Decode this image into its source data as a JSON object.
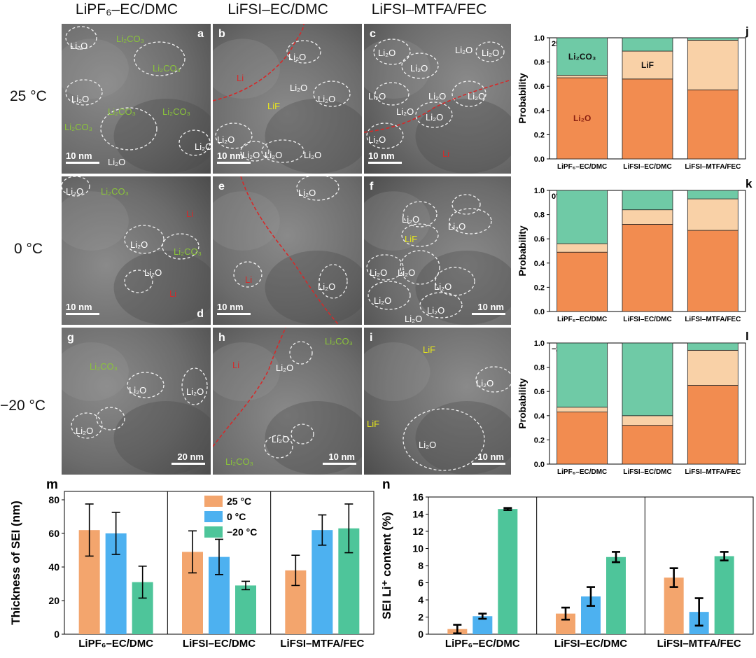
{
  "columns": [
    "LiPF₆–EC/DMC",
    "LiFSI–EC/DMC",
    "LiFSI–MTFA/FEC"
  ],
  "rows": [
    "25 °C",
    "0 °C",
    "−20 °C"
  ],
  "colors": {
    "li2o": "#f28c50",
    "lif": "#f9d1a7",
    "li2co3": "#6fcaa6",
    "c25": "#f3a56d",
    "c0": "#4db1f0",
    "cm20": "#4ec59a",
    "li": "#d42a2a",
    "lif_label": "#e8e81a",
    "li2co3_label": "#8ac43a",
    "tem_bg": "#6a6a6a"
  },
  "tem_panels": [
    {
      "letter": "a",
      "scale": "10 nm",
      "labels": [
        {
          "text": "Li₂O",
          "kind": "li2o"
        },
        {
          "text": "Li₂CO₃",
          "kind": "li2co3"
        },
        {
          "text": "Li₂CO₃",
          "kind": "li2co3"
        },
        {
          "text": "Li₂O",
          "kind": "li2o"
        },
        {
          "text": "Li₂CO₃",
          "kind": "li2co3"
        },
        {
          "text": "Li₂CO₃",
          "kind": "li2co3"
        },
        {
          "text": "Li₂CO₃",
          "kind": "li2co3"
        },
        {
          "text": "Li₂O",
          "kind": "li2o"
        },
        {
          "text": "Li₂O",
          "kind": "li2o"
        }
      ]
    },
    {
      "letter": "b",
      "scale": "10 nm",
      "labels": [
        {
          "text": "Li",
          "kind": "li"
        },
        {
          "text": "Li₂O",
          "kind": "li2o"
        },
        {
          "text": "LiF",
          "kind": "lif"
        },
        {
          "text": "Li₂O",
          "kind": "li2o"
        },
        {
          "text": "Li₂O",
          "kind": "li2o"
        },
        {
          "text": "Li₂O",
          "kind": "li2o"
        },
        {
          "text": "Li₂O",
          "kind": "li2o"
        },
        {
          "text": "Li₂O",
          "kind": "li2o"
        },
        {
          "text": "Li₂O",
          "kind": "li2o"
        }
      ]
    },
    {
      "letter": "c",
      "scale": "10 nm",
      "labels": [
        {
          "text": "Li₂O",
          "kind": "li2o"
        },
        {
          "text": "Li₂O",
          "kind": "li2o"
        },
        {
          "text": "Li₂O",
          "kind": "li2o"
        },
        {
          "text": "Li₂O",
          "kind": "li2o"
        },
        {
          "text": "Li₂O",
          "kind": "li2o"
        },
        {
          "text": "Li₂O",
          "kind": "li2o"
        },
        {
          "text": "Li₂O",
          "kind": "li2o"
        },
        {
          "text": "Li₂O",
          "kind": "li2o"
        },
        {
          "text": "Li₂O",
          "kind": "li2o"
        },
        {
          "text": "Li₂O",
          "kind": "li2o"
        },
        {
          "text": "Li",
          "kind": "li"
        }
      ]
    },
    {
      "letter": "d",
      "scale": "10 nm",
      "labels": [
        {
          "text": "Li₂O",
          "kind": "li2o"
        },
        {
          "text": "Li₂CO₃",
          "kind": "li2co3"
        },
        {
          "text": "Li",
          "kind": "li"
        },
        {
          "text": "Li₂O",
          "kind": "li2o"
        },
        {
          "text": "Li₂CO₃",
          "kind": "li2co3"
        },
        {
          "text": "Li₂O",
          "kind": "li2o"
        },
        {
          "text": "Li",
          "kind": "li"
        }
      ]
    },
    {
      "letter": "e",
      "scale": "10 nm",
      "labels": [
        {
          "text": "Li₂O",
          "kind": "li2o"
        },
        {
          "text": "Li",
          "kind": "li"
        },
        {
          "text": "Li₂O",
          "kind": "li2o"
        }
      ]
    },
    {
      "letter": "f",
      "scale": "10 nm",
      "labels": [
        {
          "text": "Li₂O",
          "kind": "li2o"
        },
        {
          "text": "Li₂O",
          "kind": "li2o"
        },
        {
          "text": "LiF",
          "kind": "lif"
        },
        {
          "text": "Li₂O",
          "kind": "li2o"
        },
        {
          "text": "Li₂O",
          "kind": "li2o"
        },
        {
          "text": "Li₂O",
          "kind": "li2o"
        },
        {
          "text": "Li₂O",
          "kind": "li2o"
        },
        {
          "text": "Li₂O",
          "kind": "li2o"
        },
        {
          "text": "Li₂O",
          "kind": "li2o"
        }
      ]
    },
    {
      "letter": "g",
      "scale": "20 nm",
      "labels": [
        {
          "text": "Li₂CO₃",
          "kind": "li2co3"
        },
        {
          "text": "Li₂O",
          "kind": "li2o"
        },
        {
          "text": "Li₂O",
          "kind": "li2o"
        },
        {
          "text": "Li₂O",
          "kind": "li2o"
        }
      ]
    },
    {
      "letter": "h",
      "scale": "10 nm",
      "labels": [
        {
          "text": "Li",
          "kind": "li"
        },
        {
          "text": "Li₂O",
          "kind": "li2o"
        },
        {
          "text": "Li₂CO₃",
          "kind": "li2co3"
        },
        {
          "text": "Li₂O",
          "kind": "li2o"
        },
        {
          "text": "Li₂CO₃",
          "kind": "li2co3"
        }
      ]
    },
    {
      "letter": "i",
      "scale": "10 nm",
      "labels": [
        {
          "text": "LiF",
          "kind": "lif"
        },
        {
          "text": "Li₂O",
          "kind": "li2o"
        },
        {
          "text": "LiF",
          "kind": "lif"
        },
        {
          "text": "Li₂O",
          "kind": "li2o"
        }
      ]
    }
  ],
  "chart_data": [
    {
      "id": "j",
      "type": "bar",
      "stacked": true,
      "annotation": "25 °C",
      "ylabel": "Probability",
      "ylim": [
        0,
        1.0
      ],
      "yticks": [
        "0.0",
        "0.2",
        "0.4",
        "0.6",
        "0.8",
        "1.0"
      ],
      "categories": [
        "LiPF₆–EC/DMC",
        "LiFSI–EC/DMC",
        "LiFSI–MTFA/FEC"
      ],
      "series": [
        {
          "key": "li2o",
          "values": [
            0.67,
            0.66,
            0.57
          ]
        },
        {
          "key": "lif",
          "values": [
            0.02,
            0.23,
            0.41
          ]
        },
        {
          "key": "li2co3",
          "values": [
            0.31,
            0.11,
            0.02
          ]
        }
      ],
      "inline_labels": [
        {
          "text": "Li₂O",
          "series": 0,
          "category": 0
        },
        {
          "text": "LiF",
          "series": 1,
          "category": 1
        },
        {
          "text": "Li₂CO₃",
          "series": 2,
          "category": 0
        }
      ]
    },
    {
      "id": "k",
      "type": "bar",
      "stacked": true,
      "annotation": "0°C",
      "ylabel": "Probability",
      "ylim": [
        0,
        1.0
      ],
      "yticks": [
        "0.0",
        "0.2",
        "0.4",
        "0.6",
        "0.8",
        "1.0"
      ],
      "categories": [
        "LiPF₆–EC/DMC",
        "LiFSI–EC/DMC",
        "LiFSI–MTFA/FEC"
      ],
      "series": [
        {
          "key": "li2o",
          "values": [
            0.49,
            0.72,
            0.67
          ]
        },
        {
          "key": "lif",
          "values": [
            0.07,
            0.12,
            0.26
          ]
        },
        {
          "key": "li2co3",
          "values": [
            0.44,
            0.16,
            0.07
          ]
        }
      ],
      "inline_labels": []
    },
    {
      "id": "l",
      "type": "bar",
      "stacked": true,
      "annotation": "−20°C",
      "ylabel": "Probability",
      "ylim": [
        0,
        1.0
      ],
      "yticks": [
        "0.0",
        "0.2",
        "0.4",
        "0.6",
        "0.8",
        "1.0"
      ],
      "categories": [
        "LiPF₆–EC/DMC",
        "LiFSI–EC/DMC",
        "LiFSI–MTFA/FEC"
      ],
      "series": [
        {
          "key": "li2o",
          "values": [
            0.43,
            0.32,
            0.65
          ]
        },
        {
          "key": "lif",
          "values": [
            0.04,
            0.08,
            0.29
          ]
        },
        {
          "key": "li2co3",
          "values": [
            0.53,
            0.6,
            0.06
          ]
        }
      ],
      "inline_labels": []
    },
    {
      "id": "m",
      "type": "bar",
      "ylabel": "Thickness of SEI (nm)",
      "ylim": [
        0,
        85
      ],
      "yticks": [
        "0",
        "20",
        "40",
        "60",
        "80"
      ],
      "categories": [
        "LiPF₆–EC/DMC",
        "LiFSI–EC/DMC",
        "LiFSI–MTFA/FEC"
      ],
      "legend": {
        "position": "top-center"
      },
      "series": [
        {
          "name": "25 °C",
          "key": "c25",
          "values": [
            62,
            49,
            38
          ],
          "errors": [
            15.5,
            12.5,
            9
          ]
        },
        {
          "name": "0 °C",
          "key": "c0",
          "values": [
            60,
            46,
            62
          ],
          "errors": [
            12.5,
            10.5,
            9
          ]
        },
        {
          "name": "−20 °C",
          "key": "cm20",
          "values": [
            31,
            29,
            63
          ],
          "errors": [
            9.5,
            2.5,
            14.5
          ]
        }
      ]
    },
    {
      "id": "n",
      "type": "bar",
      "ylabel": "SEI Li⁺ content (%)",
      "ylim": [
        0,
        16
      ],
      "yticks": [
        "0",
        "2",
        "4",
        "6",
        "8",
        "10",
        "12",
        "14",
        "16"
      ],
      "categories": [
        "LiPF₆–EC/DMC",
        "LiFSI–EC/DMC",
        "LiFSI–MTFA/FEC"
      ],
      "series": [
        {
          "key": "c25",
          "values": [
            0.6,
            2.4,
            6.6
          ],
          "errors": [
            0.5,
            0.7,
            1.1
          ]
        },
        {
          "key": "c0",
          "values": [
            2.1,
            4.4,
            2.6
          ],
          "errors": [
            0.3,
            1.1,
            1.6
          ]
        },
        {
          "key": "cm20",
          "values": [
            14.6,
            9.0,
            9.1
          ],
          "errors": [
            0.12,
            0.6,
            0.5
          ]
        }
      ]
    }
  ]
}
